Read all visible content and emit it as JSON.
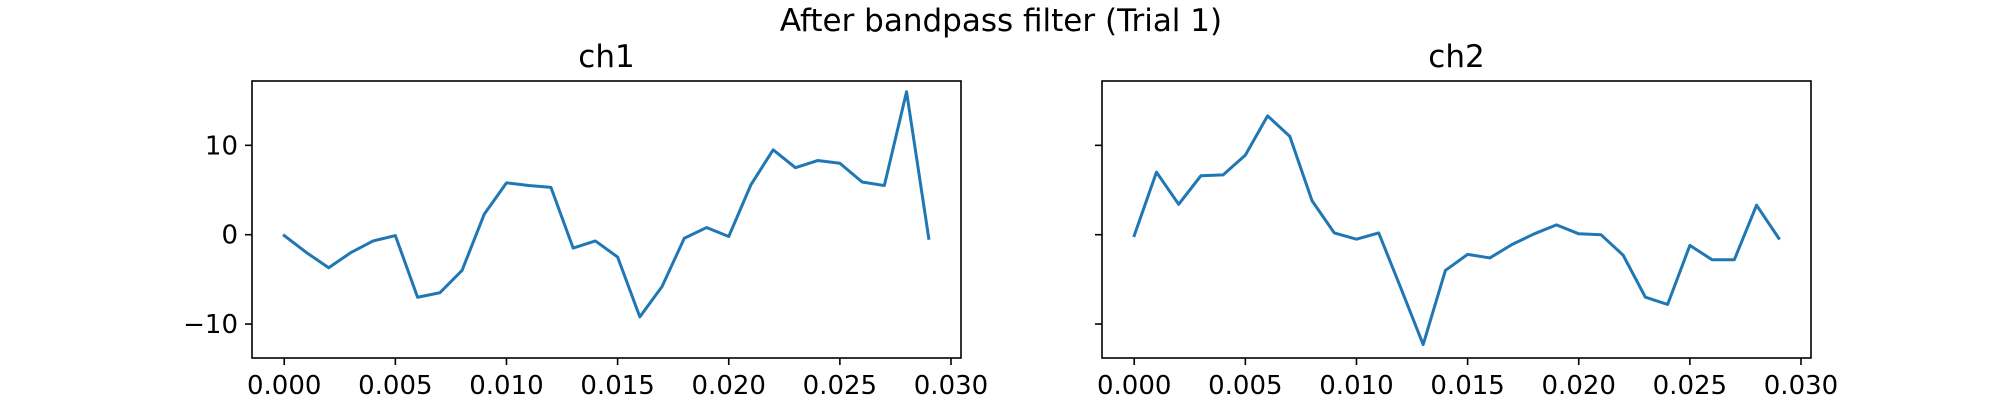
{
  "figure": {
    "title": "After bandpass filter (Trial 1)"
  },
  "style": {
    "line_color": "#1f77b4",
    "axes_color": "#000000",
    "background": "#ffffff"
  },
  "chart_data": [
    {
      "type": "line",
      "title": "ch1",
      "xlabel": "",
      "ylabel": "",
      "grid": false,
      "xlim": [
        -0.00145,
        0.03045
      ],
      "ylim": [
        -13.8,
        17.2
      ],
      "x_ticks": [
        0.0,
        0.005,
        0.01,
        0.015,
        0.02,
        0.025,
        0.03
      ],
      "x_tick_labels": [
        "0.000",
        "0.005",
        "0.010",
        "0.015",
        "0.020",
        "0.025",
        "0.030"
      ],
      "y_ticks": [
        -10,
        0,
        10
      ],
      "y_tick_labels": [
        "−10",
        "0",
        "10"
      ],
      "y_tick_labels_visible": true,
      "series": [
        {
          "x": [
            0.0,
            0.001,
            0.002,
            0.003,
            0.004,
            0.005,
            0.006,
            0.007,
            0.008,
            0.009,
            0.01,
            0.011,
            0.012,
            0.013,
            0.014,
            0.015,
            0.016,
            0.017,
            0.018,
            0.019,
            0.02,
            0.021,
            0.022,
            0.023,
            0.024,
            0.025,
            0.026,
            0.027,
            0.028,
            0.029
          ],
          "y": [
            -0.1,
            -2.0,
            -3.7,
            -2.0,
            -0.7,
            -0.1,
            -7.0,
            -6.5,
            -4.0,
            2.3,
            5.8,
            5.5,
            5.3,
            -1.5,
            -0.7,
            -2.5,
            -9.2,
            -5.8,
            -0.4,
            0.8,
            -0.2,
            5.6,
            9.5,
            7.5,
            8.3,
            8.0,
            5.9,
            5.5,
            16.0,
            -0.4
          ]
        }
      ]
    },
    {
      "type": "line",
      "title": "ch2",
      "xlabel": "",
      "ylabel": "",
      "grid": false,
      "xlim": [
        -0.00145,
        0.03045
      ],
      "ylim": [
        -13.8,
        17.2
      ],
      "x_ticks": [
        0.0,
        0.005,
        0.01,
        0.015,
        0.02,
        0.025,
        0.03
      ],
      "x_tick_labels": [
        "0.000",
        "0.005",
        "0.010",
        "0.015",
        "0.020",
        "0.025",
        "0.030"
      ],
      "y_ticks": [
        -10,
        0,
        10
      ],
      "y_tick_labels": [],
      "y_tick_labels_visible": false,
      "series": [
        {
          "x": [
            0.0,
            0.001,
            0.002,
            0.003,
            0.004,
            0.005,
            0.006,
            0.007,
            0.008,
            0.009,
            0.01,
            0.011,
            0.012,
            0.013,
            0.014,
            0.015,
            0.016,
            0.017,
            0.018,
            0.019,
            0.02,
            0.021,
            0.022,
            0.023,
            0.024,
            0.025,
            0.026,
            0.027,
            0.028,
            0.029
          ],
          "y": [
            -0.1,
            7.0,
            3.4,
            6.6,
            6.7,
            8.9,
            13.3,
            11.0,
            3.8,
            0.2,
            -0.5,
            0.2,
            -6.0,
            -12.3,
            -4.0,
            -2.2,
            -2.6,
            -1.1,
            0.1,
            1.1,
            0.1,
            0.0,
            -2.3,
            -7.0,
            -7.8,
            -1.2,
            -2.8,
            -2.8,
            3.3,
            -0.4
          ]
        }
      ]
    }
  ]
}
